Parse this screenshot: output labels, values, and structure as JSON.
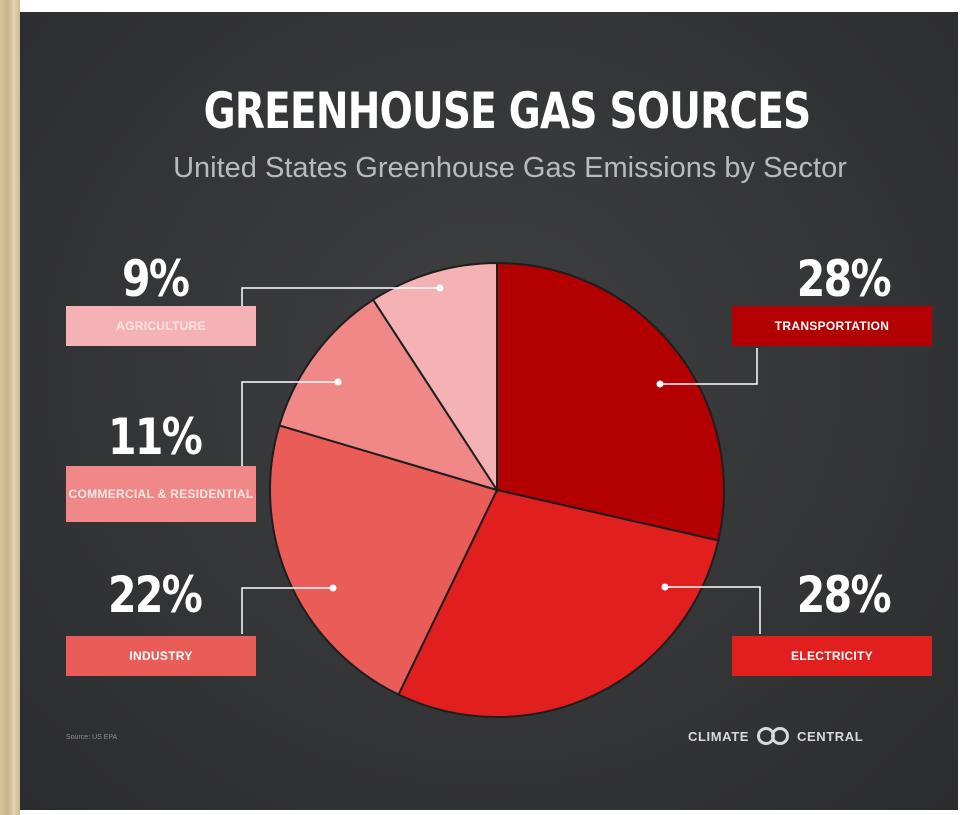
{
  "title": "GREENHOUSE GAS SOURCES",
  "subtitle": "United States Greenhouse Gas Emissions by Sector",
  "source": "Source: US EPA",
  "brand": {
    "left": "CLIMATE",
    "right": "CENTRAL",
    "logo_icon": "linked-rings-icon"
  },
  "colors": {
    "background": "#353638",
    "transportation": "#b30000",
    "electricity": "#e21f1f",
    "industry": "#ea5c58",
    "commercial_residential": "#ef8887",
    "agriculture": "#f5b2b4"
  },
  "chart_data": {
    "type": "pie",
    "title": "GREENHOUSE GAS SOURCES",
    "subtitle": "United States Greenhouse Gas Emissions by Sector",
    "unit": "%",
    "slices": [
      {
        "label": "TRANSPORTATION",
        "value": 28,
        "display": "28%",
        "color": "#b30000"
      },
      {
        "label": "ELECTRICITY",
        "value": 28,
        "display": "28%",
        "color": "#e21f1f"
      },
      {
        "label": "INDUSTRY",
        "value": 22,
        "display": "22%",
        "color": "#ea5c58"
      },
      {
        "label": "COMMERCIAL & RESIDENTIAL",
        "value": 11,
        "display": "11%",
        "color": "#ef8887"
      },
      {
        "label": "AGRICULTURE",
        "value": 9,
        "display": "9%",
        "color": "#f5b2b4"
      }
    ]
  }
}
